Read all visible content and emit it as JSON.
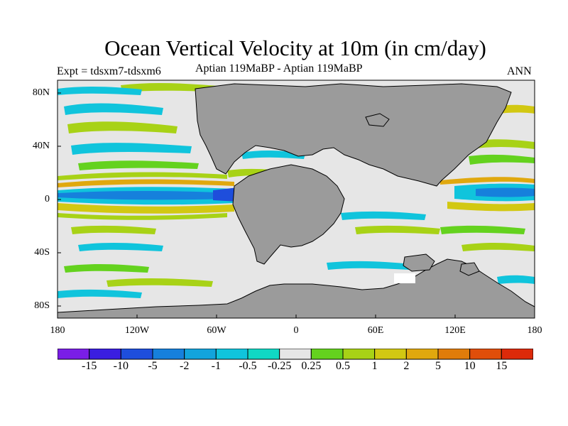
{
  "title": "Ocean Vertical Velocity at 10m (in cm/day)",
  "experiment": "Expt = tdsxm7-tdsxm6",
  "period": "Aptian   119MaBP - Aptian   119MaBP",
  "season": "ANN",
  "y_ticks": [
    "80N",
    "40N",
    "0",
    "40S",
    "80S"
  ],
  "x_ticks": [
    "180",
    "120W",
    "60W",
    "0",
    "60E",
    "120E",
    "180"
  ],
  "colorbar": {
    "labels": [
      "-15",
      "-10",
      "-5",
      "-2",
      "-1",
      "-0.5",
      "-0.25",
      "0.25",
      "0.5",
      "1",
      "2",
      "5",
      "10",
      "15"
    ],
    "colors": [
      "#7a1ee6",
      "#3a1ee0",
      "#1e4edc",
      "#1680dc",
      "#12a4dc",
      "#10c4dc",
      "#10d8c4",
      "#e6e6e6",
      "#64d21e",
      "#a8d216",
      "#d2c812",
      "#e0a80e",
      "#e07c0a",
      "#e04e0a",
      "#dc2a0a"
    ]
  },
  "colors": {
    "land": "#9b9b9b",
    "ocean": "#e6e6e6",
    "coast": "#000000"
  }
}
